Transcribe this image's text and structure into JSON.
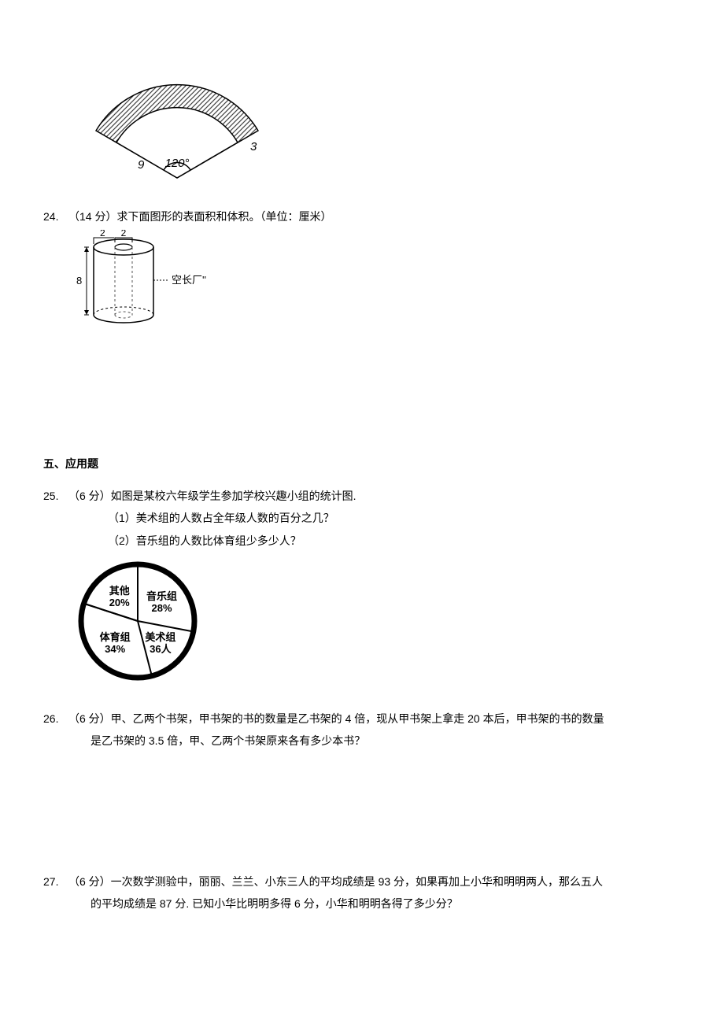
{
  "q23": {
    "figure": {
      "type": "annulus-sector",
      "outer_radius": 12,
      "inner_radius": 9,
      "inner_label": "9",
      "thickness_label": "3",
      "angle_deg": 120,
      "angle_label": "120°",
      "hatch_color": "#444444",
      "fill_color": "#ffffff",
      "line_color": "#000000"
    }
  },
  "q24": {
    "number": "24.",
    "prompt": "（14 分）求下面图形的表面积和体积。（单位：厘米）",
    "figure": {
      "type": "cylinder-with-hole",
      "outer_diameter_label": "2",
      "inner_diameter_label": "2",
      "height_label": "8",
      "side_label": "空长厂''",
      "line_color": "#000000",
      "dash_color": "#555555"
    }
  },
  "section5": {
    "title": "五、应用题"
  },
  "q25": {
    "number": "25.",
    "prompt": "（6 分）如图是某校六年级学生参加学校兴趣小组的统计图.",
    "sub1": "（1）美术组的人数占全年级人数的百分之几？",
    "sub2": "（2）音乐组的人数比体育组少多少人？",
    "chart": {
      "type": "pie",
      "outer_stroke": "#000000",
      "outer_stroke_width": 7,
      "inner_color": "#ffffff",
      "label_fontsize": 13,
      "label_fontweight": "bold",
      "slices": [
        {
          "key": "music",
          "label1": "音乐组",
          "label2": "28%",
          "percent": 28
        },
        {
          "key": "art",
          "label1": "美术组",
          "label2": "36人",
          "percent": 18
        },
        {
          "key": "sports",
          "label1": "体育组",
          "label2": "34%",
          "percent": 34
        },
        {
          "key": "other",
          "label1": "其他",
          "label2": "20%",
          "percent": 20
        }
      ]
    }
  },
  "q26": {
    "number": "26.",
    "prompt_l1": "（6 分）甲、乙两个书架，甲书架的书的数量是乙书架的 4 倍，现从甲书架上拿走 20 本后，甲书架的书的数量",
    "prompt_l2": "是乙书架的 3.5 倍，甲、乙两个书架原来各有多少本书？"
  },
  "q27": {
    "number": "27.",
    "prompt_l1": "（6 分）一次数学测验中，丽丽、兰兰、小东三人的平均成绩是 93 分，如果再加上小华和明明两人，那么五人",
    "prompt_l2": "的平均成绩是 87 分. 已知小华比明明多得 6 分，小华和明明各得了多少分？"
  }
}
